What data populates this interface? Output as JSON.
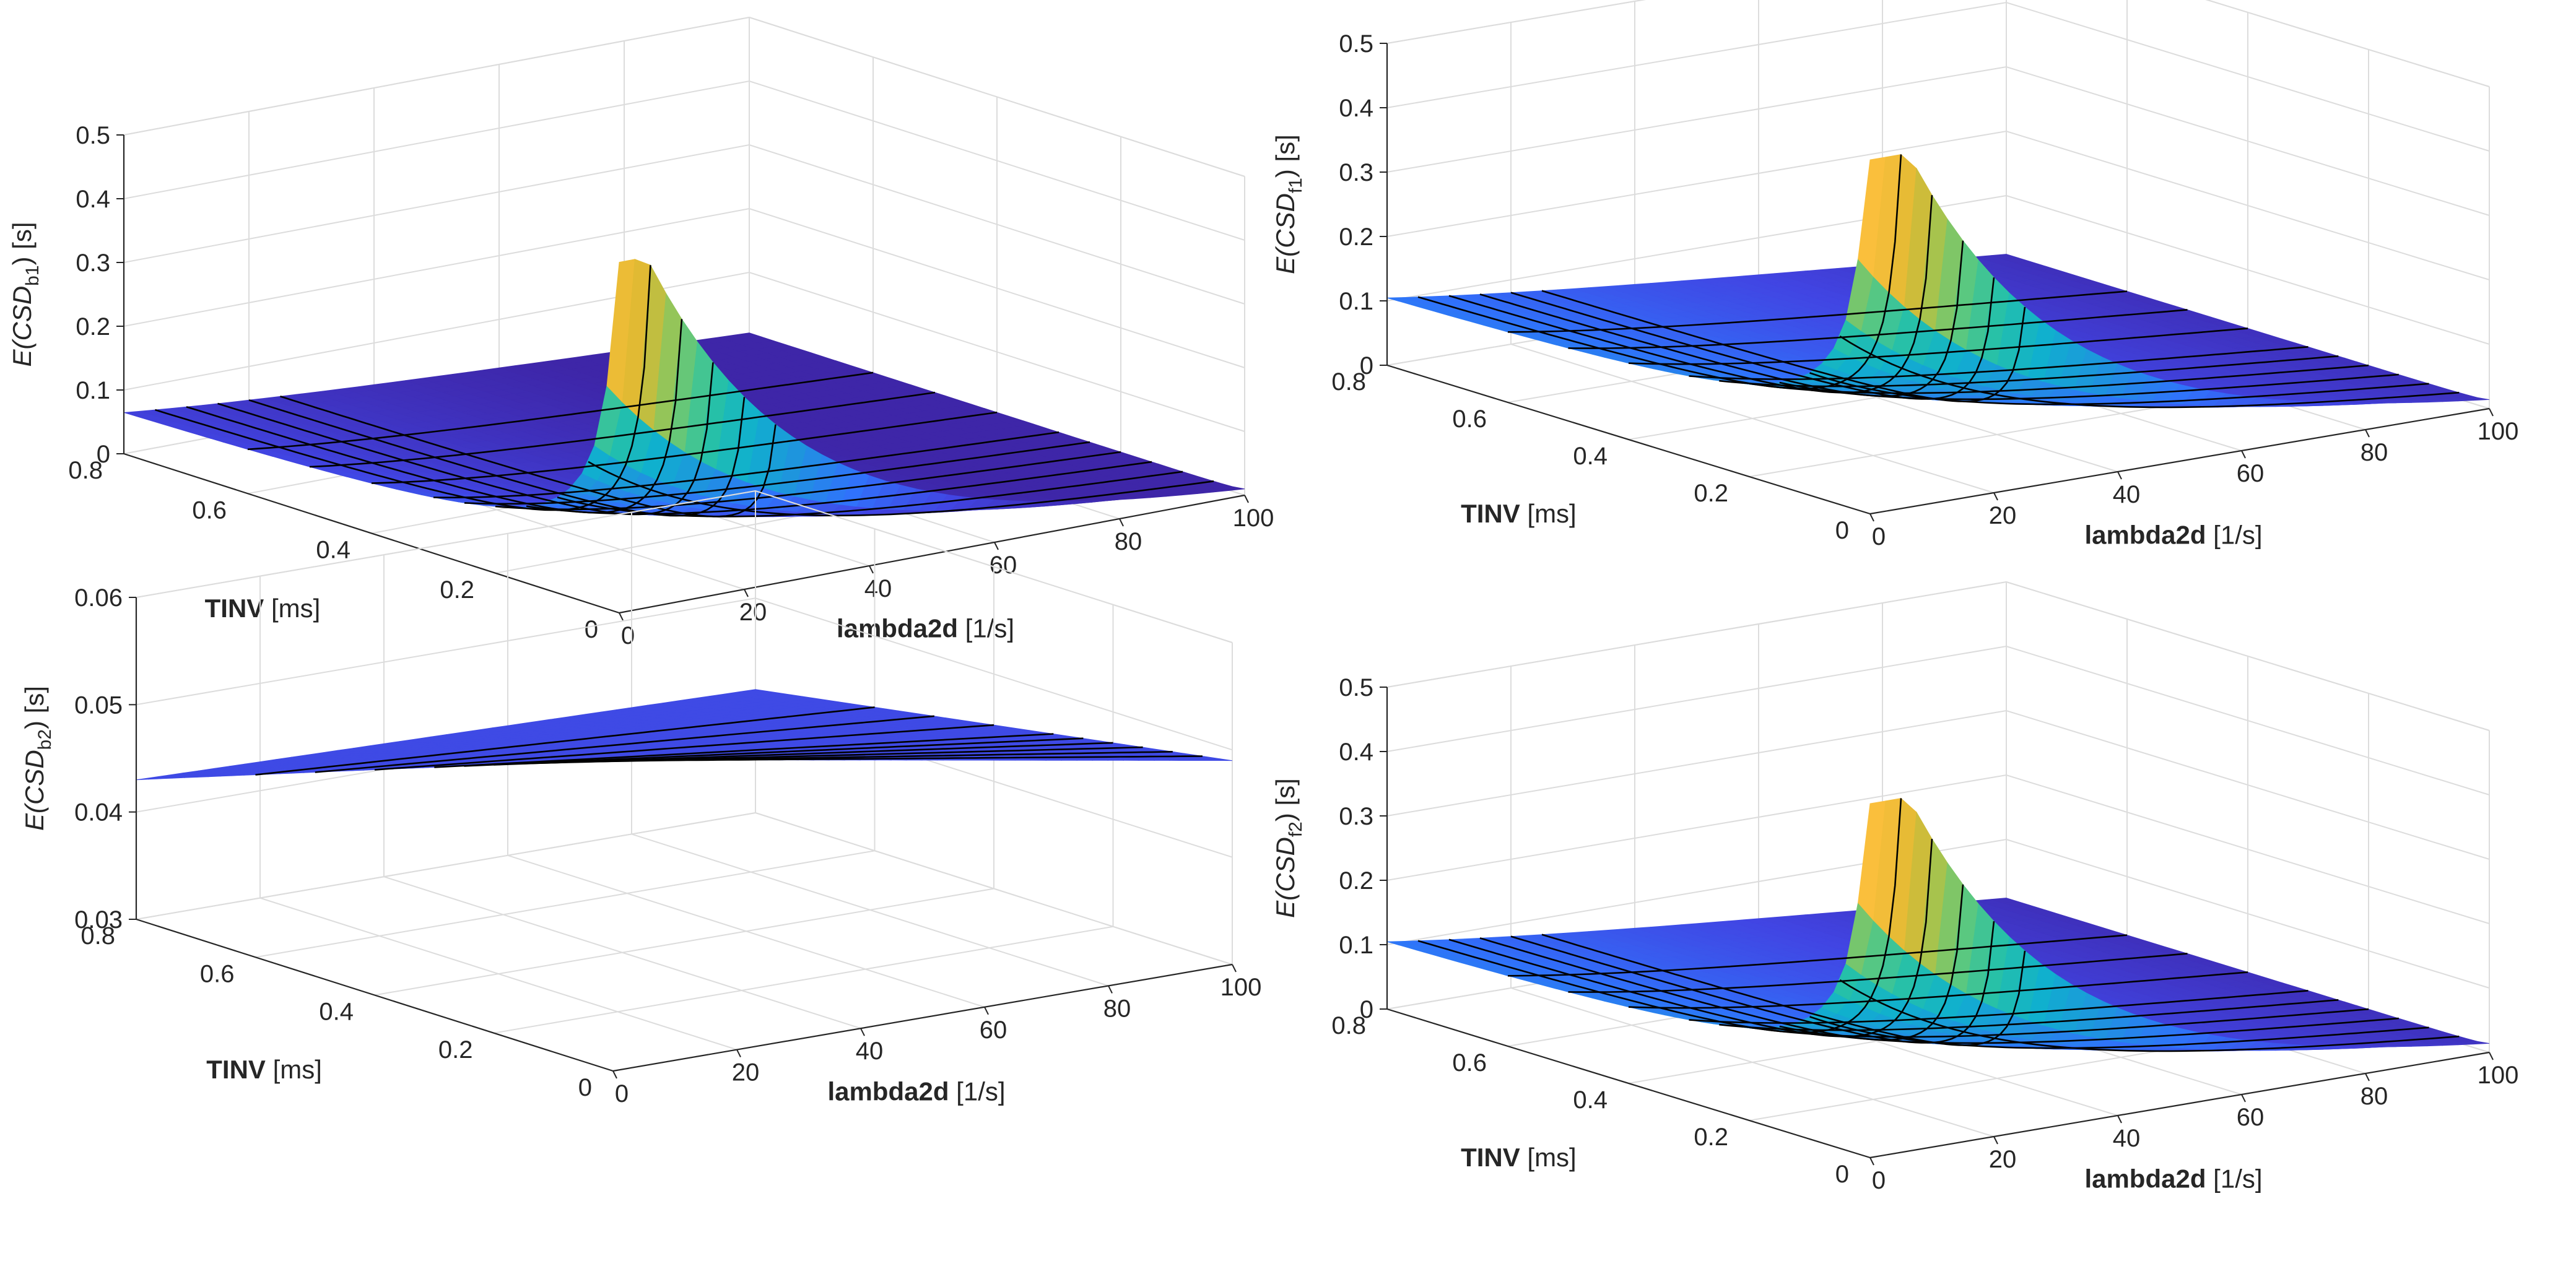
{
  "palette": [
    "#3e26a8",
    "#4145e3",
    "#3072fb",
    "#1e94de",
    "#10b0ce",
    "#24c0aa",
    "#5bc880",
    "#a2c44f",
    "#dfb932",
    "#fbbf3c",
    "#f6d92e",
    "#f9fb15"
  ],
  "line_color": "#000000",
  "chart_data": [
    {
      "id": "b1",
      "type": "surface",
      "zlabel_main": "E(CSD",
      "zlabel_sub": "b1",
      "zlabel_close": ") [s]",
      "xlabel_bold": "lambda2d",
      "xlabel_unit": "[1/s]",
      "ylabel_bold": "TINV",
      "ylabel_unit": "[ms]",
      "xlim": [
        0,
        100
      ],
      "ylim": [
        0,
        0.8
      ],
      "zlim": [
        0,
        0.5
      ],
      "xticks": [
        "0",
        "20",
        "40",
        "60",
        "80",
        "100"
      ],
      "yticks": [
        "0",
        "0.2",
        "0.4",
        "0.6",
        "0.8"
      ],
      "zticks": [
        "0",
        "0.1",
        "0.2",
        "0.3",
        "0.4",
        "0.5"
      ],
      "surface": {
        "z_at_x0": 0.05,
        "z_max": 0.55,
        "tinv_scale": 0.04
      },
      "contour_tinv": [
        0.05,
        0.1,
        0.15,
        0.2,
        0.25,
        0.3,
        0.4,
        0.5,
        0.6
      ],
      "contour_lambda": [
        5,
        10,
        15,
        20,
        25
      ]
    },
    {
      "id": "f1",
      "type": "surface",
      "zlabel_main": "E(CSD",
      "zlabel_sub": "f1",
      "zlabel_close": ") [s]",
      "xlabel_bold": "lambda2d",
      "xlabel_unit": "[1/s]",
      "ylabel_bold": "TINV",
      "ylabel_unit": "[ms]",
      "xlim": [
        0,
        100
      ],
      "ylim": [
        0,
        0.8
      ],
      "zlim": [
        0,
        0.5
      ],
      "xticks": [
        "0",
        "20",
        "40",
        "60",
        "80",
        "100"
      ],
      "yticks": [
        "0",
        "0.2",
        "0.4",
        "0.6",
        "0.8"
      ],
      "zticks": [
        "0",
        "0.1",
        "0.2",
        "0.3",
        "0.4",
        "0.5"
      ],
      "surface": {
        "z_at_x0": 0.09,
        "z_max": 0.55,
        "tinv_scale": 0.04
      },
      "contour_tinv": [
        0.05,
        0.1,
        0.15,
        0.2,
        0.25,
        0.3,
        0.4,
        0.5,
        0.6
      ],
      "contour_lambda": [
        5,
        10,
        15,
        20,
        25
      ]
    },
    {
      "id": "b2",
      "type": "surface",
      "zlabel_main": "E(CSD",
      "zlabel_sub": "b2",
      "zlabel_close": ") [s]",
      "xlabel_bold": "lambda2d",
      "xlabel_unit": "[1/s]",
      "ylabel_bold": "TINV",
      "ylabel_unit": "[ms]",
      "xlim": [
        0,
        100
      ],
      "ylim": [
        0,
        0.8
      ],
      "zlim": [
        0.03,
        0.06
      ],
      "xticks": [
        "0",
        "20",
        "40",
        "60",
        "80",
        "100"
      ],
      "yticks": [
        "0",
        "0.2",
        "0.4",
        "0.6",
        "0.8"
      ],
      "zticks": [
        "0.03",
        "0.04",
        "0.05",
        "0.06"
      ],
      "surface": {
        "z_at_corner_x0_y08": 0.043,
        "z_at_x100_y0": 0.049,
        "z_at_x0_y0": 0.059
      },
      "contour_tinv": [
        0.05,
        0.1,
        0.15,
        0.2,
        0.25,
        0.3,
        0.4,
        0.5,
        0.6
      ],
      "contour_lambda": []
    },
    {
      "id": "f2",
      "type": "surface",
      "zlabel_main": "E(CSD",
      "zlabel_sub": "f2",
      "zlabel_close": ") [s]",
      "xlabel_bold": "lambda2d",
      "xlabel_unit": "[1/s]",
      "ylabel_bold": "TINV",
      "ylabel_unit": "[ms]",
      "xlim": [
        0,
        100
      ],
      "ylim": [
        0,
        0.8
      ],
      "zlim": [
        0,
        0.5
      ],
      "xticks": [
        "0",
        "20",
        "40",
        "60",
        "80",
        "100"
      ],
      "yticks": [
        "0",
        "0.2",
        "0.4",
        "0.6",
        "0.8"
      ],
      "zticks": [
        "0",
        "0.1",
        "0.2",
        "0.3",
        "0.4",
        "0.5"
      ],
      "surface": {
        "z_at_x0": 0.09,
        "z_max": 0.55,
        "tinv_scale": 0.04
      },
      "contour_tinv": [
        0.05,
        0.1,
        0.15,
        0.2,
        0.25,
        0.3,
        0.4,
        0.5,
        0.6
      ],
      "contour_lambda": [
        5,
        10,
        15,
        20,
        25
      ]
    }
  ]
}
